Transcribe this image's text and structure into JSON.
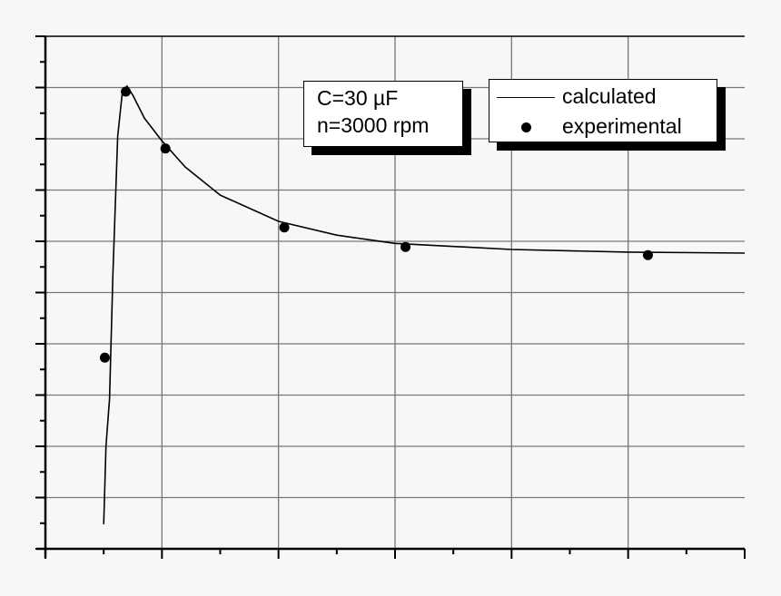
{
  "chart_data": {
    "type": "line",
    "title": "",
    "xlabel": "",
    "ylabel": "",
    "xlim": [
      0,
      6
    ],
    "ylim": [
      0,
      10
    ],
    "grid": true,
    "tick_labels_shown": false,
    "legend_position": "top-right",
    "annotation": [
      "C=30 µF",
      "n=3000 rpm"
    ],
    "series": [
      {
        "name": "calculated",
        "style": "line",
        "color": "#000000",
        "x": [
          0.5,
          0.52,
          0.55,
          0.58,
          0.62,
          0.66,
          0.7,
          0.75,
          0.85,
          1.0,
          1.2,
          1.5,
          2.0,
          2.5,
          3.0,
          4.0,
          5.0,
          6.0
        ],
        "y": [
          0.48,
          2.0,
          2.92,
          5.4,
          8.05,
          8.9,
          9.03,
          8.85,
          8.4,
          7.96,
          7.45,
          6.9,
          6.39,
          6.12,
          5.96,
          5.84,
          5.79,
          5.77
        ]
      },
      {
        "name": "experimental",
        "style": "markers",
        "color": "#000000",
        "x": [
          0.51,
          0.69,
          1.03,
          2.05,
          3.09,
          5.17
        ],
        "y": [
          3.73,
          8.92,
          7.81,
          6.27,
          5.89,
          5.73
        ]
      }
    ]
  }
}
